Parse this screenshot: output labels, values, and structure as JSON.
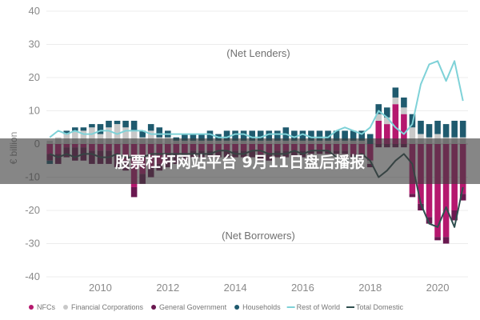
{
  "overlay": {
    "title": "股票杠杆网站平台 9月11日盘后播报"
  },
  "chart_data": {
    "type": "bar",
    "ylabel": "€ billion",
    "ylim": [
      -40,
      40
    ],
    "yticks": [
      "40",
      "30",
      "20",
      "10",
      "0",
      "-10",
      "-20",
      "-30",
      "-40"
    ],
    "xlim": [
      2008.4,
      2020.9
    ],
    "xticks": [
      {
        "value": 2010,
        "label": "2010"
      },
      {
        "value": 2012,
        "label": "2012"
      },
      {
        "value": 2014,
        "label": "2014"
      },
      {
        "value": 2016,
        "label": "2016"
      },
      {
        "value": 2018,
        "label": "2018"
      },
      {
        "value": 2020,
        "label": "2020"
      }
    ],
    "annotations": {
      "top": "(Net Lenders)",
      "bottom": "(Net Borrowers)"
    },
    "x": [
      2008.5,
      2008.75,
      2009.0,
      2009.25,
      2009.5,
      2009.75,
      2010.0,
      2010.25,
      2010.5,
      2010.75,
      2011.0,
      2011.25,
      2011.5,
      2011.75,
      2012.0,
      2012.25,
      2012.5,
      2012.75,
      2013.0,
      2013.25,
      2013.5,
      2013.75,
      2014.0,
      2014.25,
      2014.5,
      2014.75,
      2015.0,
      2015.25,
      2015.5,
      2015.75,
      2016.0,
      2016.25,
      2016.5,
      2016.75,
      2017.0,
      2017.25,
      2017.5,
      2017.75,
      2018.0,
      2018.25,
      2018.5,
      2018.75,
      2019.0,
      2019.25,
      2019.5,
      2019.75,
      2020.0,
      2020.25,
      2020.5,
      2020.75
    ],
    "series": [
      {
        "name": "NFCs",
        "color": "#b5186e",
        "kind": "bar",
        "values": [
          -3,
          -3,
          -1,
          -1,
          -1,
          -2,
          -2,
          -2,
          -3,
          -5,
          -13,
          -9,
          -7,
          -6,
          -4,
          -3,
          -3,
          -2,
          -2,
          -2,
          -2,
          -2,
          -2,
          -2,
          -2,
          -3,
          -3,
          -2,
          -2,
          -2,
          -2,
          -2,
          -2,
          -2,
          -2,
          -2,
          -3,
          -3,
          -5,
          7,
          6,
          12,
          9,
          -15,
          -18,
          -22,
          -28,
          -28,
          -20,
          -15
        ]
      },
      {
        "name": "Financial Corporations",
        "color": "#c8c8c8",
        "kind": "bar",
        "values": [
          1,
          2,
          3,
          4,
          4,
          5,
          3,
          5,
          6,
          5,
          4,
          2,
          4,
          2,
          2,
          1,
          1,
          1,
          1,
          1,
          1,
          1,
          1,
          1,
          1,
          1,
          1,
          1,
          1,
          1,
          1,
          1,
          1,
          1,
          1,
          1,
          1,
          1,
          -1,
          2,
          2,
          2,
          2,
          5,
          3,
          2,
          3,
          2,
          2,
          2
        ]
      },
      {
        "name": "General Government",
        "color": "#6a1850",
        "kind": "bar",
        "values": [
          -2,
          -3,
          -3,
          -4,
          -4,
          -4,
          -4,
          -4,
          -4,
          -3,
          -3,
          -3,
          -3,
          -2,
          -3,
          -3,
          -2,
          -2,
          -2,
          -2,
          -2,
          -2,
          -2,
          -2,
          -2,
          -2,
          -2,
          -2,
          -2,
          -2,
          -2,
          -1,
          -1,
          -1,
          -1,
          -1,
          -1,
          -1,
          -1,
          -1,
          -1,
          -1,
          -1,
          -1,
          -2,
          -2,
          -1,
          -2,
          -3,
          -2
        ]
      },
      {
        "name": "Households",
        "color": "#1f5a6e",
        "kind": "bar",
        "values": [
          -1,
          0,
          1,
          1,
          1,
          1,
          3,
          2,
          1,
          2,
          3,
          2,
          2,
          3,
          2,
          1,
          2,
          2,
          2,
          3,
          2,
          3,
          3,
          3,
          3,
          3,
          3,
          3,
          4,
          3,
          3,
          3,
          3,
          3,
          3,
          3,
          3,
          3,
          3,
          3,
          3,
          3,
          3,
          4,
          4,
          4,
          4,
          4,
          5,
          5
        ]
      },
      {
        "name": "Rest of World",
        "color": "#7fd2d8",
        "kind": "line",
        "values": [
          2,
          4,
          3,
          4,
          3,
          3,
          4,
          4,
          3,
          4,
          4,
          4,
          3,
          3,
          3,
          3,
          3,
          3,
          3,
          3,
          2,
          2,
          3,
          3,
          2,
          2,
          3,
          3,
          3,
          2,
          3,
          2,
          2,
          2,
          4,
          5,
          4,
          3,
          5,
          10,
          8,
          5,
          3,
          6,
          18,
          24,
          25,
          19,
          25,
          13
        ]
      },
      {
        "name": "Total Domestic",
        "color": "#2f4f4f",
        "kind": "line",
        "values": [
          -3,
          -4,
          -3,
          -4,
          -3,
          -3,
          -4,
          -4,
          -3,
          -4,
          -4,
          -4,
          -3,
          -3,
          -3,
          -3,
          -3,
          -3,
          -3,
          -3,
          -2,
          -2,
          -3,
          -3,
          -2,
          -2,
          -3,
          -3,
          -3,
          -2,
          -3,
          -2,
          -2,
          -2,
          -4,
          -5,
          -4,
          -3,
          -5,
          -10,
          -8,
          -5,
          -3,
          -6,
          -18,
          -24,
          -25,
          -19,
          -25,
          -13
        ]
      }
    ]
  }
}
